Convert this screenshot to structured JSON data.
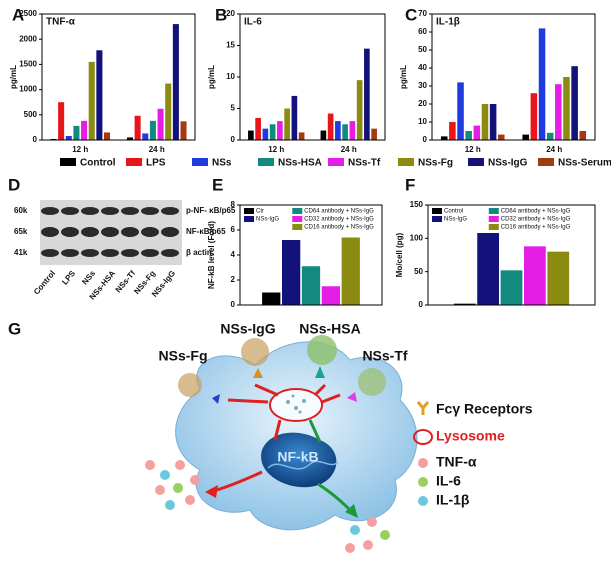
{
  "chart_data": [
    {
      "type": "bar",
      "panel": "A",
      "title": "TNF-α",
      "y_label": "pg/mL",
      "categories": [
        "12 h",
        "24 h"
      ],
      "ylim": [
        0,
        2500
      ],
      "yticks": [
        0,
        500,
        1000,
        1500,
        2000,
        2500
      ],
      "series": [
        {
          "name": "Control",
          "color": "#000000",
          "values": [
            20,
            50
          ]
        },
        {
          "name": "LPS",
          "color": "#e8151b",
          "values": [
            750,
            480
          ]
        },
        {
          "name": "NSs",
          "color": "#1f3be0",
          "values": [
            80,
            130
          ]
        },
        {
          "name": "NSs-HSA",
          "color": "#138a80",
          "values": [
            280,
            380
          ]
        },
        {
          "name": "NSs-Tf",
          "color": "#e51ee5",
          "values": [
            380,
            620
          ]
        },
        {
          "name": "NSs-Fg",
          "color": "#8b8b12",
          "values": [
            1550,
            1120
          ]
        },
        {
          "name": "NSs-IgG",
          "color": "#12127a",
          "values": [
            1780,
            2300
          ]
        },
        {
          "name": "NSs-Serum",
          "color": "#a33a10",
          "values": [
            150,
            370
          ]
        }
      ]
    },
    {
      "type": "bar",
      "panel": "B",
      "title": "IL-6",
      "y_label": "pg/mL",
      "categories": [
        "12 h",
        "24 h"
      ],
      "ylim": [
        0,
        20
      ],
      "yticks": [
        0,
        5,
        10,
        15,
        20
      ],
      "series": [
        {
          "color": "#000000",
          "values": [
            1.5,
            1.5
          ]
        },
        {
          "color": "#e8151b",
          "values": [
            3.5,
            4.2
          ]
        },
        {
          "color": "#1f3be0",
          "values": [
            1.8,
            3.0
          ]
        },
        {
          "color": "#138a80",
          "values": [
            2.5,
            2.5
          ]
        },
        {
          "color": "#e51ee5",
          "values": [
            3.0,
            3.0
          ]
        },
        {
          "color": "#8b8b12",
          "values": [
            5.0,
            9.5
          ]
        },
        {
          "color": "#12127a",
          "values": [
            7.0,
            14.5
          ]
        },
        {
          "color": "#a33a10",
          "values": [
            1.2,
            1.8
          ]
        }
      ]
    },
    {
      "type": "bar",
      "panel": "C",
      "title": "IL-1β",
      "y_label": "pg/mL",
      "categories": [
        "12 h",
        "24 h"
      ],
      "ylim": [
        0,
        70
      ],
      "yticks": [
        0,
        10,
        20,
        30,
        40,
        50,
        60,
        70
      ],
      "series": [
        {
          "color": "#000000",
          "values": [
            2,
            3
          ]
        },
        {
          "color": "#e8151b",
          "values": [
            10,
            26
          ]
        },
        {
          "color": "#1f3be0",
          "values": [
            32,
            62
          ]
        },
        {
          "color": "#138a80",
          "values": [
            5,
            4
          ]
        },
        {
          "color": "#e51ee5",
          "values": [
            8,
            31
          ]
        },
        {
          "color": "#8b8b12",
          "values": [
            20,
            35
          ]
        },
        {
          "color": "#12127a",
          "values": [
            20,
            41
          ]
        },
        {
          "color": "#a33a10",
          "values": [
            3,
            5
          ]
        }
      ]
    },
    {
      "type": "bar",
      "panel": "E",
      "y_label": "NF-kB level (Fold)",
      "categories": [
        null
      ],
      "ylim": [
        0,
        8
      ],
      "yticks": [
        0,
        2,
        4,
        6,
        8
      ],
      "series": [
        {
          "name": "Ctr",
          "color": "#000000",
          "values": [
            1.0
          ]
        },
        {
          "name": "NSs-IgG",
          "color": "#12127a",
          "values": [
            5.2
          ]
        },
        {
          "name": "CD64 antibody + NSs-IgG",
          "color": "#138a80",
          "values": [
            3.1
          ]
        },
        {
          "name": "CD32 antibody + NSs-IgG",
          "color": "#e51ee5",
          "values": [
            1.5
          ]
        },
        {
          "name": "CD16 antibody + NSs-IgG",
          "color": "#8b8b12",
          "values": [
            5.4
          ]
        }
      ]
    },
    {
      "type": "bar",
      "panel": "F",
      "y_label": "Mo/cell (pg)",
      "categories": [
        null
      ],
      "ylim": [
        0,
        150
      ],
      "yticks": [
        0,
        50,
        100,
        150
      ],
      "series": [
        {
          "name": "Control",
          "color": "#000000",
          "values": [
            2
          ]
        },
        {
          "name": "NSs-IgG",
          "color": "#12127a",
          "values": [
            108
          ]
        },
        {
          "name": "CD64 antibody + NSs-IgG",
          "color": "#138a80",
          "values": [
            52
          ]
        },
        {
          "name": "CD32 antibody + NSs-IgG",
          "color": "#e51ee5",
          "values": [
            88
          ]
        },
        {
          "name": "CD16 antibody + NSs-IgG",
          "color": "#8b8b12",
          "values": [
            80
          ]
        }
      ]
    }
  ],
  "blot": {
    "panel": "D",
    "sizes": [
      "60k",
      "65k",
      "41k"
    ],
    "rows": [
      "p-NF- κB/p65",
      "NF-κB/p65",
      "β actin"
    ],
    "lanes": [
      "Control",
      "LPS",
      "NSs",
      "NSs-HSA",
      "NSs-Tf",
      "NSs-Fg",
      "NSs-IgG"
    ]
  },
  "diagram": {
    "panel": "G",
    "particles": [
      "NSs-Fg",
      "NSs-IgG",
      "NSs-HSA",
      "NSs-Tf"
    ],
    "nucleus": "NF-kB",
    "legend": [
      "Fcγ Receptors",
      "Lysosome",
      "TNF-α",
      "IL-6",
      "IL-1β"
    ]
  }
}
